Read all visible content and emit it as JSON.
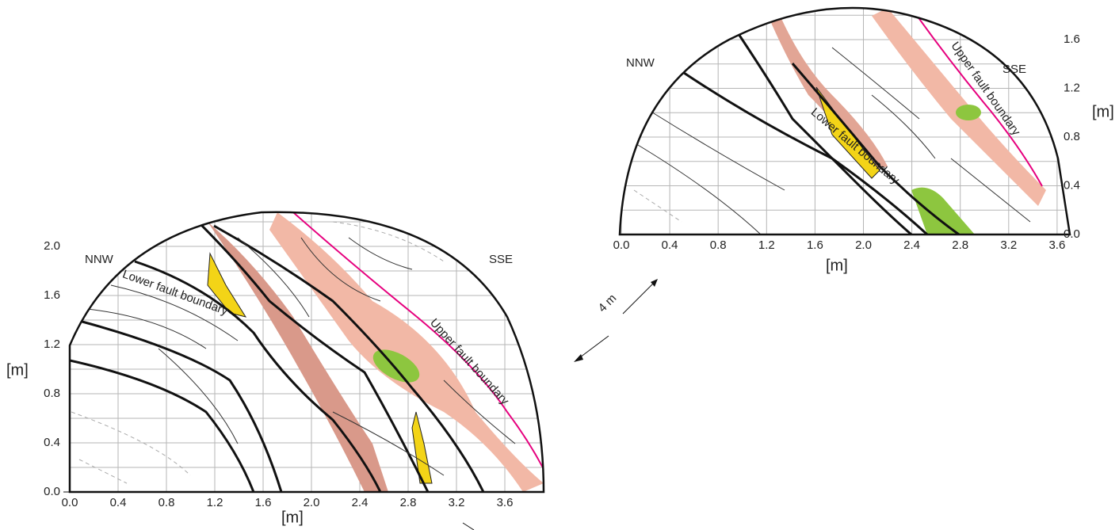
{
  "left_panel": {
    "x_ticks": [
      "0.0",
      "0.4",
      "0.8",
      "1.2",
      "1.6",
      "2.0",
      "2.4",
      "2.8",
      "3.2",
      "3.6"
    ],
    "y_ticks": [
      "0.0",
      "0.4",
      "0.8",
      "1.2",
      "1.6",
      "2.0"
    ],
    "x_axis_label": "[m]",
    "y_axis_label": "[m]",
    "west_label": "NNW",
    "east_label": "SSE",
    "lower_label": "Lower fault boundary",
    "upper_label": "Upper fault boundary"
  },
  "right_panel": {
    "x_ticks": [
      "0.0",
      "0.4",
      "0.8",
      "1.2",
      "1.6",
      "2.0",
      "2.4",
      "2.8",
      "3.2",
      "3.6"
    ],
    "y_ticks": [
      "0.0",
      "0.4",
      "0.8",
      "1.2",
      "1.6"
    ],
    "x_axis_label": "[m]",
    "y_axis_label": "[m]",
    "west_label": "NNW",
    "east_label": "SSE",
    "lower_label": "Lower fault boundary",
    "upper_label": "Upper fault boundary"
  },
  "scale_label": "4 m"
}
